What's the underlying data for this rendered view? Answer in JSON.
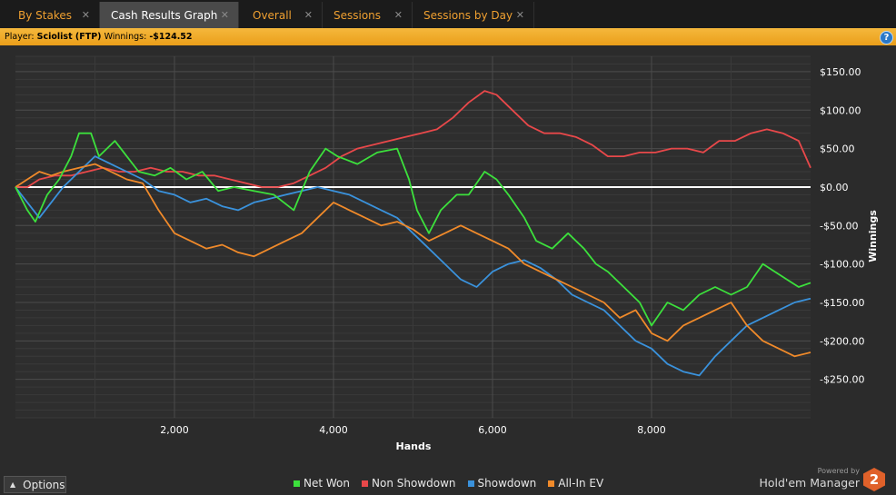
{
  "tabs": [
    {
      "label": "By Stakes",
      "active": false
    },
    {
      "label": "Cash Results Graph",
      "active": true
    },
    {
      "label": "Overall",
      "active": false
    },
    {
      "label": "Sessions",
      "active": false
    },
    {
      "label": "Sessions by Day",
      "active": false
    }
  ],
  "player_bar": {
    "player_label": "Player:",
    "player_value": "Sciolist (FTP)",
    "winnings_label": "Winnings:",
    "winnings_value": "-$124.52"
  },
  "options_label": "Options",
  "branding": {
    "powered_by": "Powered by",
    "product": "Hold'em Manager",
    "logo_text": "2"
  },
  "colors": {
    "net_won": "#3ce03c",
    "non_showdown": "#e8484a",
    "showdown": "#3a92dc",
    "all_in_ev": "#f08a2a",
    "accent": "#f0a030"
  },
  "chart_data": {
    "type": "line",
    "xlabel": "Hands",
    "ylabel": "Winnings",
    "xlim": [
      0,
      10000
    ],
    "ylim": [
      -300,
      170
    ],
    "x_ticks": [
      2000,
      4000,
      6000,
      8000
    ],
    "x_tick_labels": [
      "2,000",
      "4,000",
      "6,000",
      "8,000"
    ],
    "y_ticks": [
      150,
      100,
      50,
      0,
      -50,
      -100,
      -150,
      -200,
      -250
    ],
    "y_tick_labels": [
      "$150.00",
      "$100.00",
      "$50.00",
      "$0.00",
      "-$50.00",
      "-$100.00",
      "-$150.00",
      "-$200.00",
      "-$250.00"
    ],
    "grid": true,
    "legend_position": "bottom",
    "series": [
      {
        "name": "Net Won",
        "color": "#3ce03c",
        "x": [
          0,
          150,
          250,
          400,
          550,
          700,
          800,
          950,
          1050,
          1250,
          1400,
          1550,
          1750,
          1950,
          2150,
          2350,
          2550,
          2750,
          3000,
          3250,
          3500,
          3700,
          3900,
          4050,
          4300,
          4550,
          4800,
          4950,
          5050,
          5200,
          5350,
          5550,
          5700,
          5900,
          6050,
          6200,
          6400,
          6550,
          6750,
          6950,
          7150,
          7300,
          7450,
          7650,
          7850,
          8000,
          8200,
          8400,
          8600,
          8800,
          9000,
          9200,
          9400,
          9550,
          9700,
          9850,
          10000
        ],
        "y": [
          0,
          -30,
          -45,
          -10,
          10,
          40,
          70,
          70,
          40,
          60,
          40,
          20,
          15,
          25,
          10,
          20,
          -5,
          0,
          -5,
          -10,
          -30,
          20,
          50,
          40,
          30,
          45,
          50,
          10,
          -30,
          -60,
          -30,
          -10,
          -10,
          20,
          10,
          -10,
          -40,
          -70,
          -80,
          -60,
          -80,
          -100,
          -110,
          -130,
          -150,
          -180,
          -150,
          -160,
          -140,
          -130,
          -140,
          -130,
          -100,
          -110,
          -120,
          -130,
          -124.52
        ]
      },
      {
        "name": "Non Showdown",
        "color": "#e8484a",
        "x": [
          0,
          150,
          300,
          500,
          700,
          900,
          1100,
          1300,
          1500,
          1700,
          1900,
          2100,
          2300,
          2500,
          2700,
          2900,
          3100,
          3300,
          3500,
          3700,
          3900,
          4100,
          4300,
          4500,
          4700,
          4900,
          5100,
          5300,
          5500,
          5700,
          5900,
          6050,
          6250,
          6450,
          6650,
          6850,
          7050,
          7250,
          7450,
          7650,
          7850,
          8050,
          8250,
          8450,
          8650,
          8850,
          9050,
          9250,
          9450,
          9650,
          9850,
          10000
        ],
        "y": [
          0,
          0,
          10,
          15,
          15,
          20,
          25,
          20,
          20,
          25,
          20,
          20,
          15,
          15,
          10,
          5,
          0,
          0,
          5,
          15,
          25,
          40,
          50,
          55,
          60,
          65,
          70,
          75,
          90,
          110,
          125,
          120,
          100,
          80,
          70,
          70,
          65,
          55,
          40,
          40,
          45,
          45,
          50,
          50,
          45,
          60,
          60,
          70,
          75,
          70,
          60,
          25
        ]
      },
      {
        "name": "Showdown",
        "color": "#3a92dc",
        "x": [
          0,
          150,
          300,
          450,
          600,
          800,
          1000,
          1200,
          1400,
          1600,
          1800,
          2000,
          2200,
          2400,
          2600,
          2800,
          3000,
          3200,
          3400,
          3600,
          3800,
          4000,
          4200,
          4400,
          4600,
          4800,
          5000,
          5200,
          5400,
          5600,
          5800,
          6000,
          6200,
          6400,
          6600,
          6800,
          7000,
          7200,
          7400,
          7600,
          7800,
          8000,
          8200,
          8400,
          8600,
          8800,
          9000,
          9200,
          9400,
          9600,
          9800,
          10000
        ],
        "y": [
          0,
          -20,
          -40,
          -20,
          0,
          20,
          40,
          30,
          20,
          10,
          -5,
          -10,
          -20,
          -15,
          -25,
          -30,
          -20,
          -15,
          -10,
          -5,
          0,
          -5,
          -10,
          -20,
          -30,
          -40,
          -60,
          -80,
          -100,
          -120,
          -130,
          -110,
          -100,
          -95,
          -105,
          -120,
          -140,
          -150,
          -160,
          -180,
          -200,
          -210,
          -230,
          -240,
          -245,
          -220,
          -200,
          -180,
          -170,
          -160,
          -150,
          -145
        ]
      },
      {
        "name": "All-In EV",
        "color": "#f08a2a",
        "x": [
          0,
          150,
          300,
          450,
          600,
          800,
          1000,
          1200,
          1400,
          1600,
          1800,
          2000,
          2200,
          2400,
          2600,
          2800,
          3000,
          3200,
          3400,
          3600,
          3800,
          4000,
          4200,
          4400,
          4600,
          4800,
          5000,
          5200,
          5400,
          5600,
          5800,
          6000,
          6200,
          6400,
          6600,
          6800,
          7000,
          7200,
          7400,
          7600,
          7800,
          8000,
          8200,
          8400,
          8600,
          8800,
          9000,
          9200,
          9400,
          9600,
          9800,
          10000
        ],
        "y": [
          0,
          10,
          20,
          15,
          20,
          25,
          30,
          20,
          10,
          5,
          -30,
          -60,
          -70,
          -80,
          -75,
          -85,
          -90,
          -80,
          -70,
          -60,
          -40,
          -20,
          -30,
          -40,
          -50,
          -45,
          -55,
          -70,
          -60,
          -50,
          -60,
          -70,
          -80,
          -100,
          -110,
          -120,
          -130,
          -140,
          -150,
          -170,
          -160,
          -190,
          -200,
          -180,
          -170,
          -160,
          -150,
          -180,
          -200,
          -210,
          -220,
          -215
        ]
      }
    ]
  }
}
